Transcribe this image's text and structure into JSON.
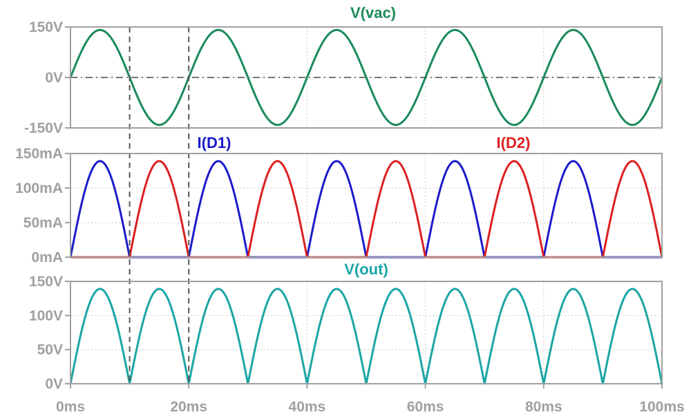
{
  "chart_data": [
    {
      "type": "line",
      "title": "V(vac)",
      "xlim": [
        0,
        100
      ],
      "ylim": [
        -150,
        150
      ],
      "y_ticks": [
        {
          "value": 150,
          "label": "150V"
        },
        {
          "value": 0,
          "label": "0V"
        },
        {
          "value": -150,
          "label": "-150V"
        }
      ],
      "grid": true,
      "series": [
        {
          "name": "V(vac)",
          "color": "#1a8a5a",
          "shape": "sine",
          "amplitude": 141,
          "frequency_hz": 50,
          "x_unit": "ms",
          "y_unit": "V"
        }
      ]
    },
    {
      "type": "line",
      "title": "",
      "xlim": [
        0,
        100
      ],
      "ylim": [
        0,
        150
      ],
      "y_ticks": [
        {
          "value": 150,
          "label": "150mA"
        },
        {
          "value": 100,
          "label": "100mA"
        },
        {
          "value": 50,
          "label": "50mA"
        },
        {
          "value": 0,
          "label": "0mA"
        }
      ],
      "grid": true,
      "series": [
        {
          "name": "I(D1)",
          "color": "#1a1acc",
          "shape": "half-wave-positive",
          "amplitude": 139,
          "frequency_hz": 50,
          "x_unit": "ms",
          "y_unit": "mA"
        },
        {
          "name": "I(D2)",
          "color": "#dd1f1f",
          "shape": "half-wave-negative",
          "amplitude": 139,
          "frequency_hz": 50,
          "x_unit": "ms",
          "y_unit": "mA"
        }
      ]
    },
    {
      "type": "line",
      "title": "V(out)",
      "xlim": [
        0,
        100
      ],
      "ylim": [
        0,
        150
      ],
      "y_ticks": [
        {
          "value": 150,
          "label": "150V"
        },
        {
          "value": 100,
          "label": "100V"
        },
        {
          "value": 50,
          "label": "50V"
        },
        {
          "value": 0,
          "label": "0V"
        }
      ],
      "grid": true,
      "series": [
        {
          "name": "V(out)",
          "color": "#1aa5a5",
          "shape": "full-wave-rectified",
          "amplitude": 139,
          "frequency_hz": 50,
          "x_unit": "ms",
          "y_unit": "V"
        }
      ]
    }
  ],
  "x_ticks": [
    {
      "value": 0,
      "label": "0ms"
    },
    {
      "value": 20,
      "label": "20ms"
    },
    {
      "value": 40,
      "label": "40ms"
    },
    {
      "value": 60,
      "label": "60ms"
    },
    {
      "value": 80,
      "label": "80ms"
    },
    {
      "value": 100,
      "label": "100ms"
    }
  ],
  "cursors_ms": [
    10,
    20
  ]
}
